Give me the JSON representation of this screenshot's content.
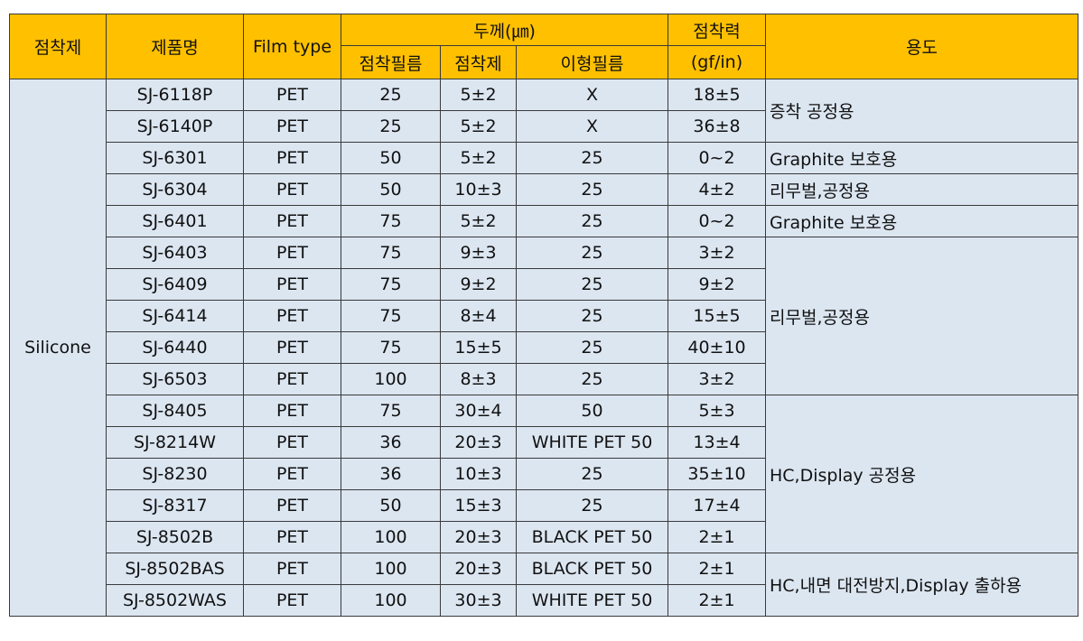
{
  "colors": {
    "header_bg": "#ffc000",
    "body_bg": "#dce6f1",
    "border": "#3a3a3a"
  },
  "header": {
    "adhesive": "점착제",
    "product": "제품명",
    "film_type": "Film type",
    "thickness": "두께(㎛)",
    "thickness_sub": {
      "adhesive_film": "점착필름",
      "adhesive": "점착제",
      "release_film": "이형필름"
    },
    "adhesion": "점착력",
    "adhesion_unit": "(gf/in)",
    "use": "용도"
  },
  "adhesive_type": "Silicone",
  "rows": [
    {
      "product": "SJ-6118P",
      "film": "PET",
      "adhesive_film": "25",
      "adhesive": "5±2",
      "release_film": "X",
      "adhesion": "18±5"
    },
    {
      "product": "SJ-6140P",
      "film": "PET",
      "adhesive_film": "25",
      "adhesive": "5±2",
      "release_film": "X",
      "adhesion": "36±8"
    },
    {
      "product": "SJ-6301",
      "film": "PET",
      "adhesive_film": "50",
      "adhesive": "5±2",
      "release_film": "25",
      "adhesion": "0~2"
    },
    {
      "product": "SJ-6304",
      "film": "PET",
      "adhesive_film": "50",
      "adhesive": "10±3",
      "release_film": "25",
      "adhesion": "4±2"
    },
    {
      "product": "SJ-6401",
      "film": "PET",
      "adhesive_film": "75",
      "adhesive": "5±2",
      "release_film": "25",
      "adhesion": "0~2"
    },
    {
      "product": "SJ-6403",
      "film": "PET",
      "adhesive_film": "75",
      "adhesive": "9±3",
      "release_film": "25",
      "adhesion": "3±2"
    },
    {
      "product": "SJ-6409",
      "film": "PET",
      "adhesive_film": "75",
      "adhesive": "9±2",
      "release_film": "25",
      "adhesion": "9±2"
    },
    {
      "product": "SJ-6414",
      "film": "PET",
      "adhesive_film": "75",
      "adhesive": "8±4",
      "release_film": "25",
      "adhesion": "15±5"
    },
    {
      "product": "SJ-6440",
      "film": "PET",
      "adhesive_film": "75",
      "adhesive": "15±5",
      "release_film": "25",
      "adhesion": "40±10"
    },
    {
      "product": "SJ-6503",
      "film": "PET",
      "adhesive_film": "100",
      "adhesive": "8±3",
      "release_film": "25",
      "adhesion": "3±2"
    },
    {
      "product": "SJ-8405",
      "film": "PET",
      "adhesive_film": "75",
      "adhesive": "30±4",
      "release_film": "50",
      "adhesion": "5±3"
    },
    {
      "product": "SJ-8214W",
      "film": "PET",
      "adhesive_film": "36",
      "adhesive": "20±3",
      "release_film": "WHITE PET 50",
      "adhesion": "13±4"
    },
    {
      "product": "SJ-8230",
      "film": "PET",
      "adhesive_film": "36",
      "adhesive": "10±3",
      "release_film": "25",
      "adhesion": "35±10"
    },
    {
      "product": "SJ-8317",
      "film": "PET",
      "adhesive_film": "50",
      "adhesive": "15±3",
      "release_film": "25",
      "adhesion": "17±4"
    },
    {
      "product": "SJ-8502B",
      "film": "PET",
      "adhesive_film": "100",
      "adhesive": "20±3",
      "release_film": "BLACK PET 50",
      "adhesion": "2±1"
    },
    {
      "product": "SJ-8502BAS",
      "film": "PET",
      "adhesive_film": "100",
      "adhesive": "20±3",
      "release_film": "BLACK PET 50",
      "adhesion": "2±1"
    },
    {
      "product": "SJ-8502WAS",
      "film": "PET",
      "adhesive_film": "100",
      "adhesive": "30±3",
      "release_film": "WHITE PET 50",
      "adhesion": "2±1"
    }
  ],
  "uses": [
    "증착 공정용",
    "Graphite 보호용",
    "리무벌,공정용",
    "Graphite 보호용",
    "리무벌,공정용",
    "HC,Display 공정용",
    "HC,내면 대전방지,Display 출하용"
  ]
}
